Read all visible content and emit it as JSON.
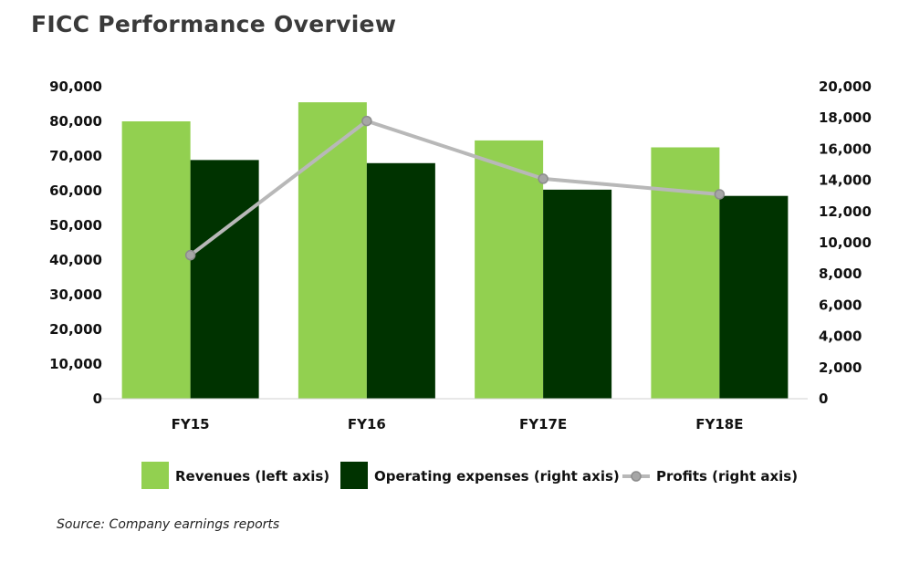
{
  "title": "FICC Performance Overview",
  "source": "Source: Company earnings reports",
  "colors": {
    "revenues": "#92d050",
    "opex": "#003300",
    "profits_line": "#b8b8b8",
    "profits_marker": "#a6a6a6"
  },
  "chart_data": {
    "type": "bar",
    "categories": [
      "FY15",
      "FY16",
      "FY17E",
      "FY18E"
    ],
    "series": [
      {
        "name": "Revenues (left axis)",
        "type": "bar",
        "axis": "left",
        "values": [
          80000,
          85500,
          74500,
          72500
        ]
      },
      {
        "name": "Operating expenses (right axis)",
        "type": "bar",
        "axis": "right",
        "values": [
          15300,
          15100,
          13400,
          13000
        ]
      },
      {
        "name": "Profits (right axis)",
        "type": "line",
        "axis": "right",
        "values": [
          9200,
          17800,
          14100,
          13100
        ]
      }
    ],
    "left_axis": {
      "ylim": [
        0,
        90000
      ],
      "ticks": [
        "0",
        "10,000",
        "20,000",
        "30,000",
        "40,000",
        "50,000",
        "60,000",
        "70,000",
        "80,000",
        "90,000"
      ]
    },
    "right_axis": {
      "ylim": [
        0,
        20000
      ],
      "ticks": [
        "0",
        "2,000",
        "4,000",
        "6,000",
        "8,000",
        "10,000",
        "12,000",
        "14,000",
        "16,000",
        "18,000",
        "20,000"
      ]
    },
    "grid": false,
    "legend_position": "bottom"
  }
}
